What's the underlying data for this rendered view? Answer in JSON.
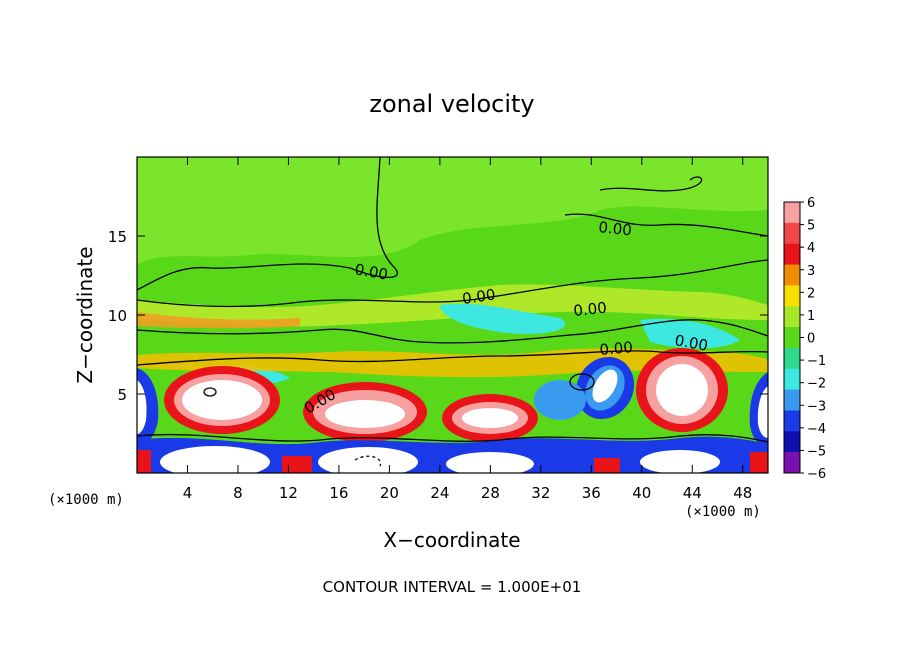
{
  "chart_data": {
    "type": "heatmap",
    "title": "zonal velocity",
    "xlabel": "X−coordinate",
    "ylabel": "Z−coordinate",
    "x_unit_left": "(×1000 m)",
    "x_unit_right": "(×1000 m)",
    "footer": "CONTOUR INTERVAL = 1.000E+01",
    "xlim": [
      0,
      50
    ],
    "ylim": [
      0,
      20
    ],
    "x_ticks": [
      4,
      8,
      12,
      16,
      20,
      24,
      28,
      32,
      36,
      40,
      44,
      48
    ],
    "y_ticks": [
      5,
      10,
      15
    ],
    "colorbar": {
      "levels": [
        6,
        5,
        4,
        3,
        2,
        1,
        0,
        -1,
        -2,
        -3,
        -4,
        -5,
        -6
      ],
      "labels": [
        "6",
        "5",
        "4",
        "3",
        "2",
        "1",
        "0",
        "−1",
        "−2",
        "−3",
        "−4",
        "−5",
        "−6"
      ],
      "colors": [
        "#f6a0a0",
        "#f24848",
        "#e8141a",
        "#f08c00",
        "#f7e000",
        "#a8e82a",
        "#58d818",
        "#2fd88a",
        "#3ce8e0",
        "#3a9af0",
        "#1a3ae8",
        "#1010b0",
        "#7a10b0"
      ]
    },
    "contour_labels": [
      "0.00",
      "0.00",
      "0.00",
      "0.00",
      "0.00",
      "0.00",
      "0.00"
    ]
  }
}
